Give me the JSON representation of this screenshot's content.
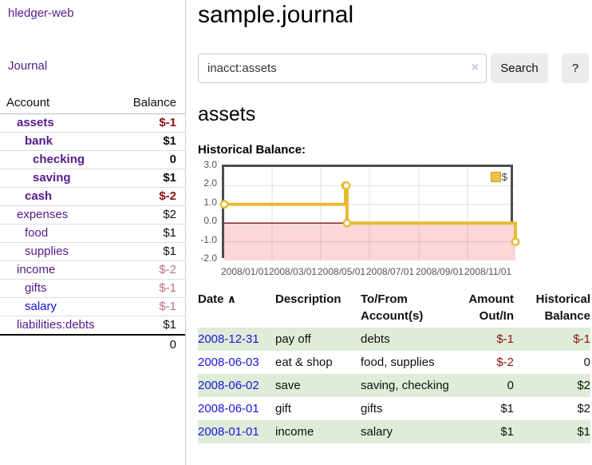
{
  "app": {
    "brand": "hledger-web"
  },
  "sidebar": {
    "journal_link": "Journal",
    "accounts": {
      "header": {
        "account": "Account",
        "balance": "Balance"
      },
      "rows": [
        {
          "name": "assets",
          "balance": "$-1",
          "indent": 0,
          "bold": true,
          "name_color": "purple",
          "balance_tone": "negative-strong"
        },
        {
          "name": "bank",
          "balance": "$1",
          "indent": 1,
          "bold": true,
          "name_color": "purple",
          "balance_tone": "normal"
        },
        {
          "name": "checking",
          "balance": "0",
          "indent": 2,
          "bold": true,
          "name_color": "purple",
          "balance_tone": "normal"
        },
        {
          "name": "saving",
          "balance": "$1",
          "indent": 2,
          "bold": true,
          "name_color": "purple",
          "balance_tone": "normal"
        },
        {
          "name": "cash",
          "balance": "$-2",
          "indent": 1,
          "bold": true,
          "name_color": "purple",
          "balance_tone": "negative-strong"
        },
        {
          "name": "expenses",
          "balance": "$2",
          "indent": 0,
          "bold": false,
          "name_color": "purple",
          "balance_tone": "normal"
        },
        {
          "name": "food",
          "balance": "$1",
          "indent": 1,
          "bold": false,
          "name_color": "purple",
          "balance_tone": "normal"
        },
        {
          "name": "supplies",
          "balance": "$1",
          "indent": 1,
          "bold": false,
          "name_color": "purple",
          "balance_tone": "normal"
        },
        {
          "name": "income",
          "balance": "$-2",
          "indent": 0,
          "bold": false,
          "name_color": "purple",
          "balance_tone": "negative-soft"
        },
        {
          "name": "gifts",
          "balance": "$-1",
          "indent": 1,
          "bold": false,
          "name_color": "purple",
          "balance_tone": "negative-soft"
        },
        {
          "name": "salary",
          "balance": "$-1",
          "indent": 1,
          "bold": false,
          "name_color": "blue",
          "balance_tone": "negative-soft"
        },
        {
          "name": "liabilities:debts",
          "balance": "$1",
          "indent": 0,
          "bold": false,
          "name_color": "purple",
          "balance_tone": "normal"
        }
      ],
      "total": "0"
    }
  },
  "main": {
    "title": "sample.journal",
    "search": {
      "value": "inacct:assets",
      "clear_icon": "×",
      "search_button": "Search",
      "help_button": "?"
    },
    "account_heading": "assets",
    "chart_heading": "Historical Balance:"
  },
  "chart_data": {
    "type": "line",
    "step": true,
    "title": "Historical Balance:",
    "series": [
      {
        "name": "$",
        "color": "#e8ba33",
        "points": [
          {
            "date": "2008-01-01",
            "value": 1
          },
          {
            "date": "2008-06-01",
            "value": 2
          },
          {
            "date": "2008-06-02",
            "value": 2
          },
          {
            "date": "2008-06-03",
            "value": 0
          },
          {
            "date": "2008-12-31",
            "value": -1
          }
        ]
      }
    ],
    "ylim": [
      -2,
      3
    ],
    "yticks": [
      "3.0",
      "2.0",
      "1.0",
      "0.0",
      "-1.0",
      "-2.0"
    ],
    "xticks": [
      {
        "date": "2008-01-01",
        "label": "2008/01/01"
      },
      {
        "date": "2008-03-01",
        "label": "2008/03/01"
      },
      {
        "date": "2008-05-01",
        "label": "2008/05/01"
      },
      {
        "date": "2008-07-01",
        "label": "2008/07/01"
      },
      {
        "date": "2008-09-01",
        "label": "2008/09/01"
      },
      {
        "date": "2008-11-01",
        "label": "2008/11/01"
      }
    ],
    "legend": {
      "label": "$",
      "position": "top-right"
    },
    "negative_fill": "#fbd7d7",
    "zero_line_color": "#7c1313",
    "grid": true
  },
  "transactions": {
    "header": {
      "date": "Date",
      "sort_icon": "∧",
      "description": "Description",
      "accounts": "To/From Account(s)",
      "amount": "Amount Out/In",
      "balance": "Historical Balance"
    },
    "rows": [
      {
        "date": "2008-12-31",
        "description": "pay off",
        "accounts": "debts",
        "amount": "$-1",
        "amount_tone": "negative",
        "balance": "$-1",
        "balance_tone": "negative",
        "shaded": true
      },
      {
        "date": "2008-06-03",
        "description": "eat & shop",
        "accounts": "food, supplies",
        "amount": "$-2",
        "amount_tone": "negative",
        "balance": "0",
        "balance_tone": "normal",
        "shaded": false
      },
      {
        "date": "2008-06-02",
        "description": "save",
        "accounts": "saving, checking",
        "amount": "0",
        "amount_tone": "normal",
        "balance": "$2",
        "balance_tone": "normal",
        "shaded": true
      },
      {
        "date": "2008-06-01",
        "description": "gift",
        "accounts": "gifts",
        "amount": "$1",
        "amount_tone": "normal",
        "balance": "$2",
        "balance_tone": "normal",
        "shaded": false
      },
      {
        "date": "2008-01-01",
        "description": "income",
        "accounts": "salary",
        "amount": "$1",
        "amount_tone": "normal",
        "balance": "$1",
        "balance_tone": "normal",
        "shaded": true
      }
    ]
  },
  "colors": {
    "purple": "#551a8b",
    "blue_link": "#1a16e0",
    "negative_strong": "#8b1410",
    "negative_soft": "#c0707a",
    "row_green": "#dfecd8",
    "accent_yellow": "#e8ba33",
    "chart_negative_fill": "#fbd7d7",
    "chart_zero_line": "#7c1313"
  }
}
